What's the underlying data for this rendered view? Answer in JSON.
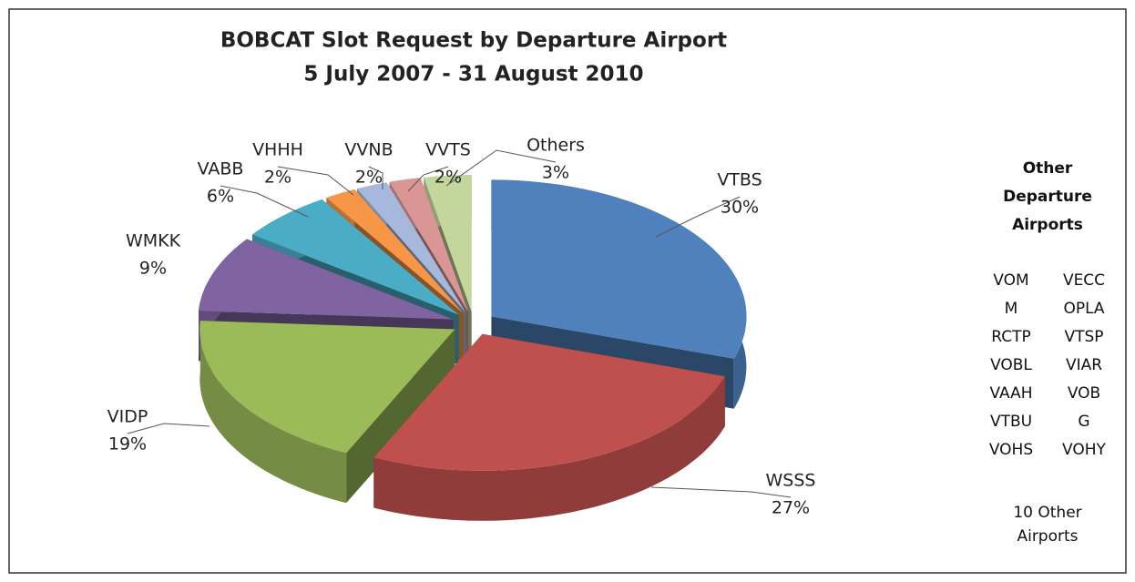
{
  "chart_data": {
    "type": "pie3d",
    "title": "BOBCAT Slot Request by Departure Airport",
    "subtitle": "5 July 2007 - 31 August 2010",
    "categories": [
      "VTBS",
      "WSSS",
      "VIDP",
      "WMKK",
      "VABB",
      "VHHH",
      "VVNB",
      "VVTS",
      "Others"
    ],
    "values": [
      30,
      27,
      19,
      9,
      6,
      2,
      2,
      2,
      3
    ],
    "value_labels": [
      "30%",
      "27%",
      "19%",
      "9%",
      "6%",
      "2%",
      "2%",
      "2%",
      "3%"
    ],
    "colors": [
      "#4f81bd",
      "#c0504d",
      "#9bbb59",
      "#8064a2",
      "#4bacc6",
      "#f79646",
      "#a6b9dc",
      "#d99694",
      "#c3d69b"
    ],
    "side_panel": {
      "title": "Other Departure Airports",
      "columns": [
        [
          "VOM",
          "M",
          "RCTP",
          "VOBL",
          "VAAH",
          "VTBU",
          "VOHS"
        ],
        [
          "VECC",
          "OPLA",
          "VTSP",
          "VIAR",
          "VOB",
          "G",
          "VOHY"
        ]
      ],
      "footer": "10 Other Airports"
    }
  }
}
